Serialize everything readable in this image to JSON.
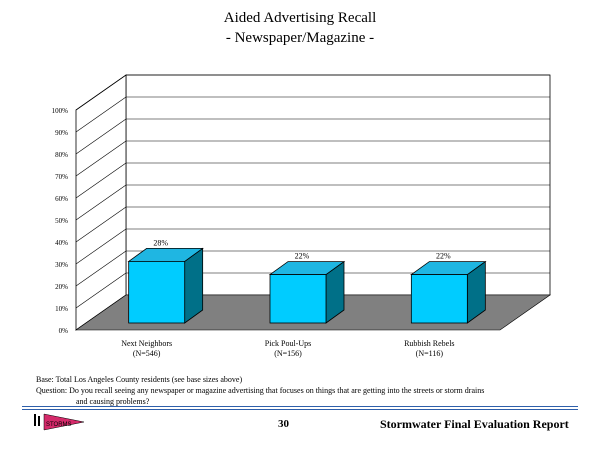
{
  "title_line1": "Aided Advertising Recall",
  "title_line2": "- Newspaper/Magazine -",
  "chart_data": {
    "type": "bar",
    "categories": [
      {
        "line1": "Next Neighbors",
        "line2": "(N=546)"
      },
      {
        "line1": "Pick Poul-Ups",
        "line2": "(N=156)"
      },
      {
        "line1": "Rubbish Rebels",
        "line2": "(N=116)"
      }
    ],
    "values": [
      28,
      22,
      22
    ],
    "value_labels": [
      "28%",
      "22%",
      "22%"
    ],
    "y_ticks": [
      "0%",
      "10%",
      "20%",
      "30%",
      "40%",
      "50%",
      "60%",
      "70%",
      "80%",
      "90%",
      "100%"
    ],
    "ylim": [
      0,
      100
    ],
    "grid": true,
    "bar_front_color": "#00ccff",
    "bar_top_color": "#1fb6e2",
    "bar_side_color": "#007088",
    "floor_color": "#808080"
  },
  "footer": {
    "base": "Base: Total Los Angeles County residents (see base sizes above)",
    "question_line1": "Question: Do you recall seeing any newspaper or magazine advertising that focuses on things that are getting into the streets or storm drains",
    "question_line2": "and causing problems?",
    "page_number": "30",
    "report_title": "Stormwater Final Evaluation Report",
    "logo_text": "STORMS"
  },
  "colors": {
    "rule": "#2f5faa",
    "logo_pink": "#d42a6a"
  }
}
